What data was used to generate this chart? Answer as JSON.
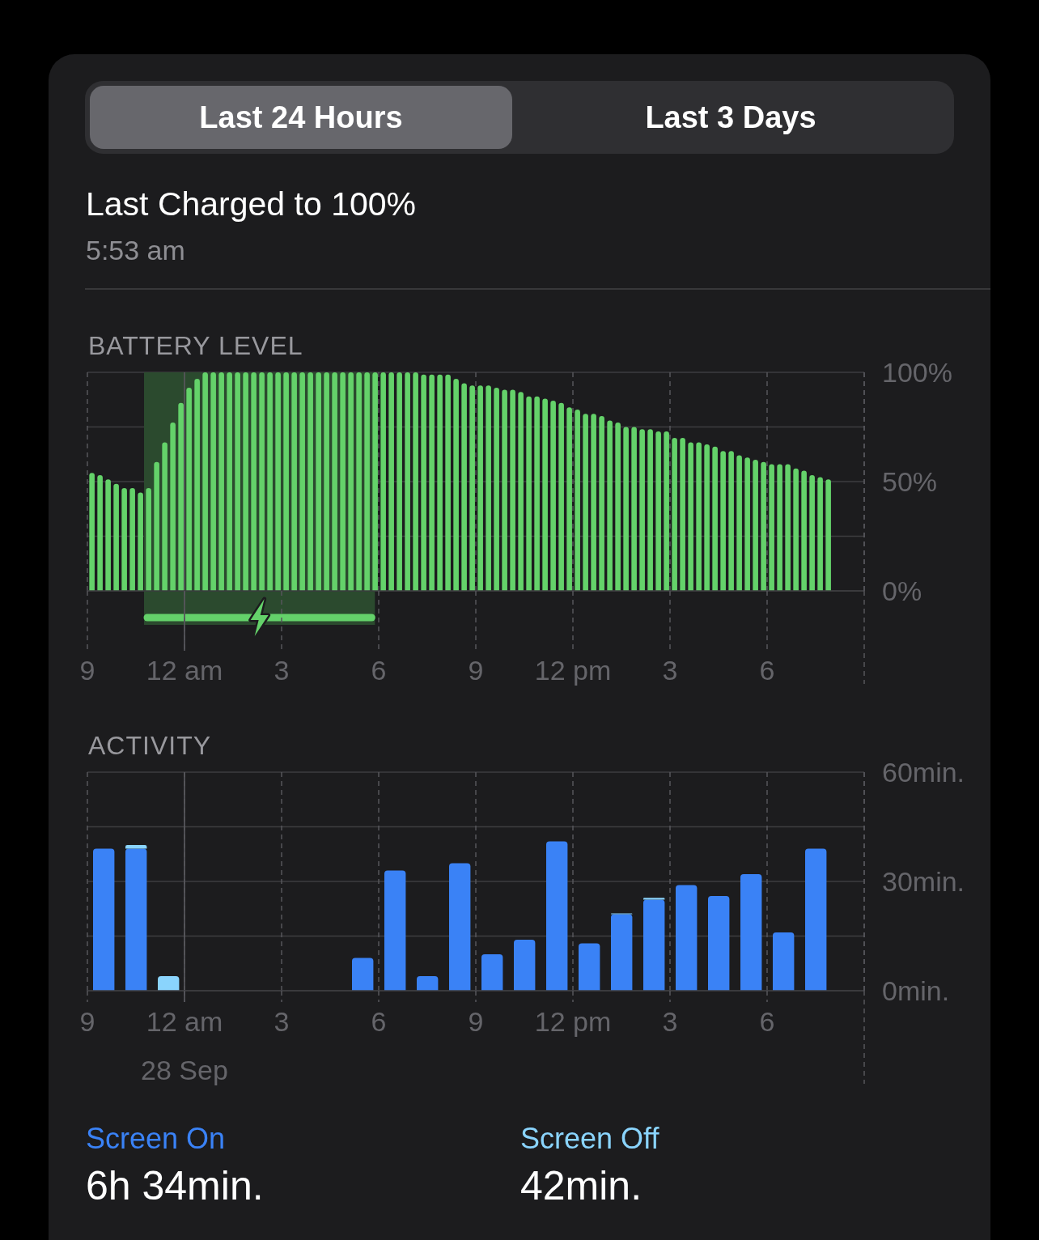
{
  "chart_data": [
    {
      "type": "other",
      "title": "Last Charged to 100%",
      "subtitle": "5:53 am",
      "annotations": [
        "Last 24 Hours",
        "Last 3 Days"
      ]
    },
    {
      "type": "bar",
      "title": "BATTERY LEVEL",
      "color": "#64d26a",
      "x": [
        "--09-27T21:08",
        "--09-27T21:23",
        "--09-27T21:38",
        "--09-27T21:53",
        "--09-27T22:08",
        "--09-27T22:23",
        "--09-27T22:38",
        "--09-27T22:53",
        "--09-27T23:08",
        "--09-27T23:23",
        "--09-27T23:38",
        "--09-27T23:53",
        "--09-28T00:08",
        "--09-28T00:23",
        "--09-28T00:38",
        "--09-28T00:53",
        "--09-28T01:08",
        "--09-28T01:23",
        "--09-28T01:38",
        "--09-28T01:53",
        "--09-28T02:08",
        "--09-28T02:23",
        "--09-28T02:38",
        "--09-28T02:53",
        "--09-28T03:08",
        "--09-28T03:23",
        "--09-28T03:38",
        "--09-28T03:53",
        "--09-28T04:08",
        "--09-28T04:23",
        "--09-28T04:38",
        "--09-28T04:53",
        "--09-28T05:08",
        "--09-28T05:23",
        "--09-28T05:38",
        "--09-28T05:53",
        "--09-28T06:08",
        "--09-28T06:23",
        "--09-28T06:38",
        "--09-28T06:53",
        "--09-28T07:08",
        "--09-28T07:23",
        "--09-28T07:38",
        "--09-28T07:53",
        "--09-28T08:08",
        "--09-28T08:23",
        "--09-28T08:38",
        "--09-28T08:53",
        "--09-28T09:08",
        "--09-28T09:23",
        "--09-28T09:38",
        "--09-28T09:53",
        "--09-28T10:08",
        "--09-28T10:23",
        "--09-28T10:38",
        "--09-28T10:53",
        "--09-28T11:08",
        "--09-28T11:23",
        "--09-28T11:38",
        "--09-28T11:53",
        "--09-28T12:08",
        "--09-28T12:23",
        "--09-28T12:38",
        "--09-28T12:53",
        "--09-28T13:08",
        "--09-28T13:23",
        "--09-28T13:38",
        "--09-28T13:53",
        "--09-28T14:08",
        "--09-28T14:23",
        "--09-28T14:38",
        "--09-28T14:53",
        "--09-28T15:08",
        "--09-28T15:23",
        "--09-28T15:38",
        "--09-28T15:53",
        "--09-28T16:08",
        "--09-28T16:23",
        "--09-28T16:38",
        "--09-28T16:53",
        "--09-28T17:08",
        "--09-28T17:23",
        "--09-28T17:38",
        "--09-28T17:53",
        "--09-28T18:08",
        "--09-28T18:23",
        "--09-28T18:38",
        "--09-28T18:53",
        "--09-28T19:08",
        "--09-28T19:23",
        "--09-28T19:38",
        "--09-28T19:53"
      ],
      "values": [
        54,
        53,
        51,
        49,
        47,
        47,
        45,
        47,
        59,
        68,
        77,
        86,
        93,
        97,
        100,
        100,
        100,
        100,
        100,
        100,
        100,
        100,
        100,
        100,
        100,
        100,
        100,
        100,
        100,
        100,
        100,
        100,
        100,
        100,
        100,
        100,
        100,
        100,
        100,
        100,
        100,
        99,
        99,
        99,
        99,
        97,
        95,
        94,
        94,
        94,
        93,
        92,
        92,
        91,
        89,
        89,
        88,
        87,
        86,
        84,
        83,
        81,
        81,
        80,
        78,
        77,
        75,
        75,
        74,
        74,
        73,
        73,
        70,
        70,
        68,
        68,
        67,
        66,
        64,
        64,
        62,
        61,
        60,
        59,
        58,
        58,
        58,
        56,
        55,
        53,
        52,
        51
      ],
      "xlim": [
        "--09-27T21:00",
        "--09-28T21:00"
      ],
      "xticks": [
        {
          "value": "--09-27T21:00",
          "label": "9"
        },
        {
          "value": "--09-28T00:00",
          "label": "12 am"
        },
        {
          "value": "--09-28T03:00",
          "label": "3"
        },
        {
          "value": "--09-28T06:00",
          "label": "6"
        },
        {
          "value": "--09-28T09:00",
          "label": "9"
        },
        {
          "value": "--09-28T12:00",
          "label": "12 pm"
        },
        {
          "value": "--09-28T15:00",
          "label": "3"
        },
        {
          "value": "--09-28T18:00",
          "label": "6"
        },
        {
          "value": "--09-28T21:00",
          "label": null
        }
      ],
      "ylim": [
        0,
        100
      ],
      "yticks": [
        {
          "value": 0,
          "label": "0%"
        },
        {
          "value": 25,
          "label": null
        },
        {
          "value": 50,
          "label": "50%"
        },
        {
          "value": 75,
          "label": null
        },
        {
          "value": 100,
          "label": "100%"
        }
      ],
      "grid": true,
      "bands": [
        {
          "axis": "x",
          "from": "--09-27T22:45",
          "to": "--09-28T05:53",
          "color": "#2b4a2e"
        }
      ],
      "ref_lines": [
        {
          "axis": "x",
          "value": "--09-28T00:00",
          "line_style": "solid"
        }
      ]
    },
    {
      "type": "bar",
      "title": "ACTIVITY",
      "stacked": true,
      "x": [
        "--09-27T21:30",
        "--09-27T22:30",
        "--09-27T23:30",
        "--09-28T00:30",
        "--09-28T01:30",
        "--09-28T02:30",
        "--09-28T03:30",
        "--09-28T04:30",
        "--09-28T05:30",
        "--09-28T06:30",
        "--09-28T07:30",
        "--09-28T08:30",
        "--09-28T09:30",
        "--09-28T10:30",
        "--09-28T11:30",
        "--09-28T12:30",
        "--09-28T13:30",
        "--09-28T14:30",
        "--09-28T15:30",
        "--09-28T16:30",
        "--09-28T17:30",
        "--09-28T18:30",
        "--09-28T19:30"
      ],
      "series": [
        {
          "name": "Screen On",
          "color": "#3a82f6",
          "values": [
            39,
            39,
            null,
            null,
            null,
            null,
            null,
            null,
            9,
            33,
            4,
            35,
            10,
            14,
            41,
            13,
            21,
            25,
            29,
            26,
            32,
            16,
            39
          ]
        },
        {
          "name": "Screen Off",
          "color": "#8ad4fd",
          "values": [
            null,
            1,
            4,
            null,
            null,
            null,
            null,
            null,
            null,
            null,
            null,
            null,
            null,
            null,
            null,
            null,
            0.2,
            0.5,
            null,
            null,
            null,
            null,
            null
          ]
        }
      ],
      "xlim": [
        "--09-27T21:00",
        "--09-28T21:00"
      ],
      "xticks": [
        {
          "value": "--09-27T21:00",
          "label": "9"
        },
        {
          "value": "--09-28T00:00",
          "label": "12 am"
        },
        {
          "value": "--09-28T03:00",
          "label": "3"
        },
        {
          "value": "--09-28T06:00",
          "label": "6"
        },
        {
          "value": "--09-28T09:00",
          "label": "9"
        },
        {
          "value": "--09-28T12:00",
          "label": "12 pm"
        },
        {
          "value": "--09-28T15:00",
          "label": "3"
        },
        {
          "value": "--09-28T18:00",
          "label": "6"
        },
        {
          "value": "--09-28T21:00",
          "label": null
        }
      ],
      "ylim": [
        0,
        60
      ],
      "yticks": [
        {
          "value": 0,
          "label": "0min."
        },
        {
          "value": 15,
          "label": null
        },
        {
          "value": 30,
          "label": "30min."
        },
        {
          "value": 45,
          "label": null
        },
        {
          "value": 60,
          "label": "60min."
        }
      ],
      "grid": true,
      "legend": "bottom",
      "annotations": [
        "6h 34min.",
        "42min."
      ],
      "ref_lines": [
        {
          "axis": "x",
          "value": "--09-28T00:00",
          "label": "28 Sep",
          "line_style": "solid"
        }
      ]
    }
  ]
}
